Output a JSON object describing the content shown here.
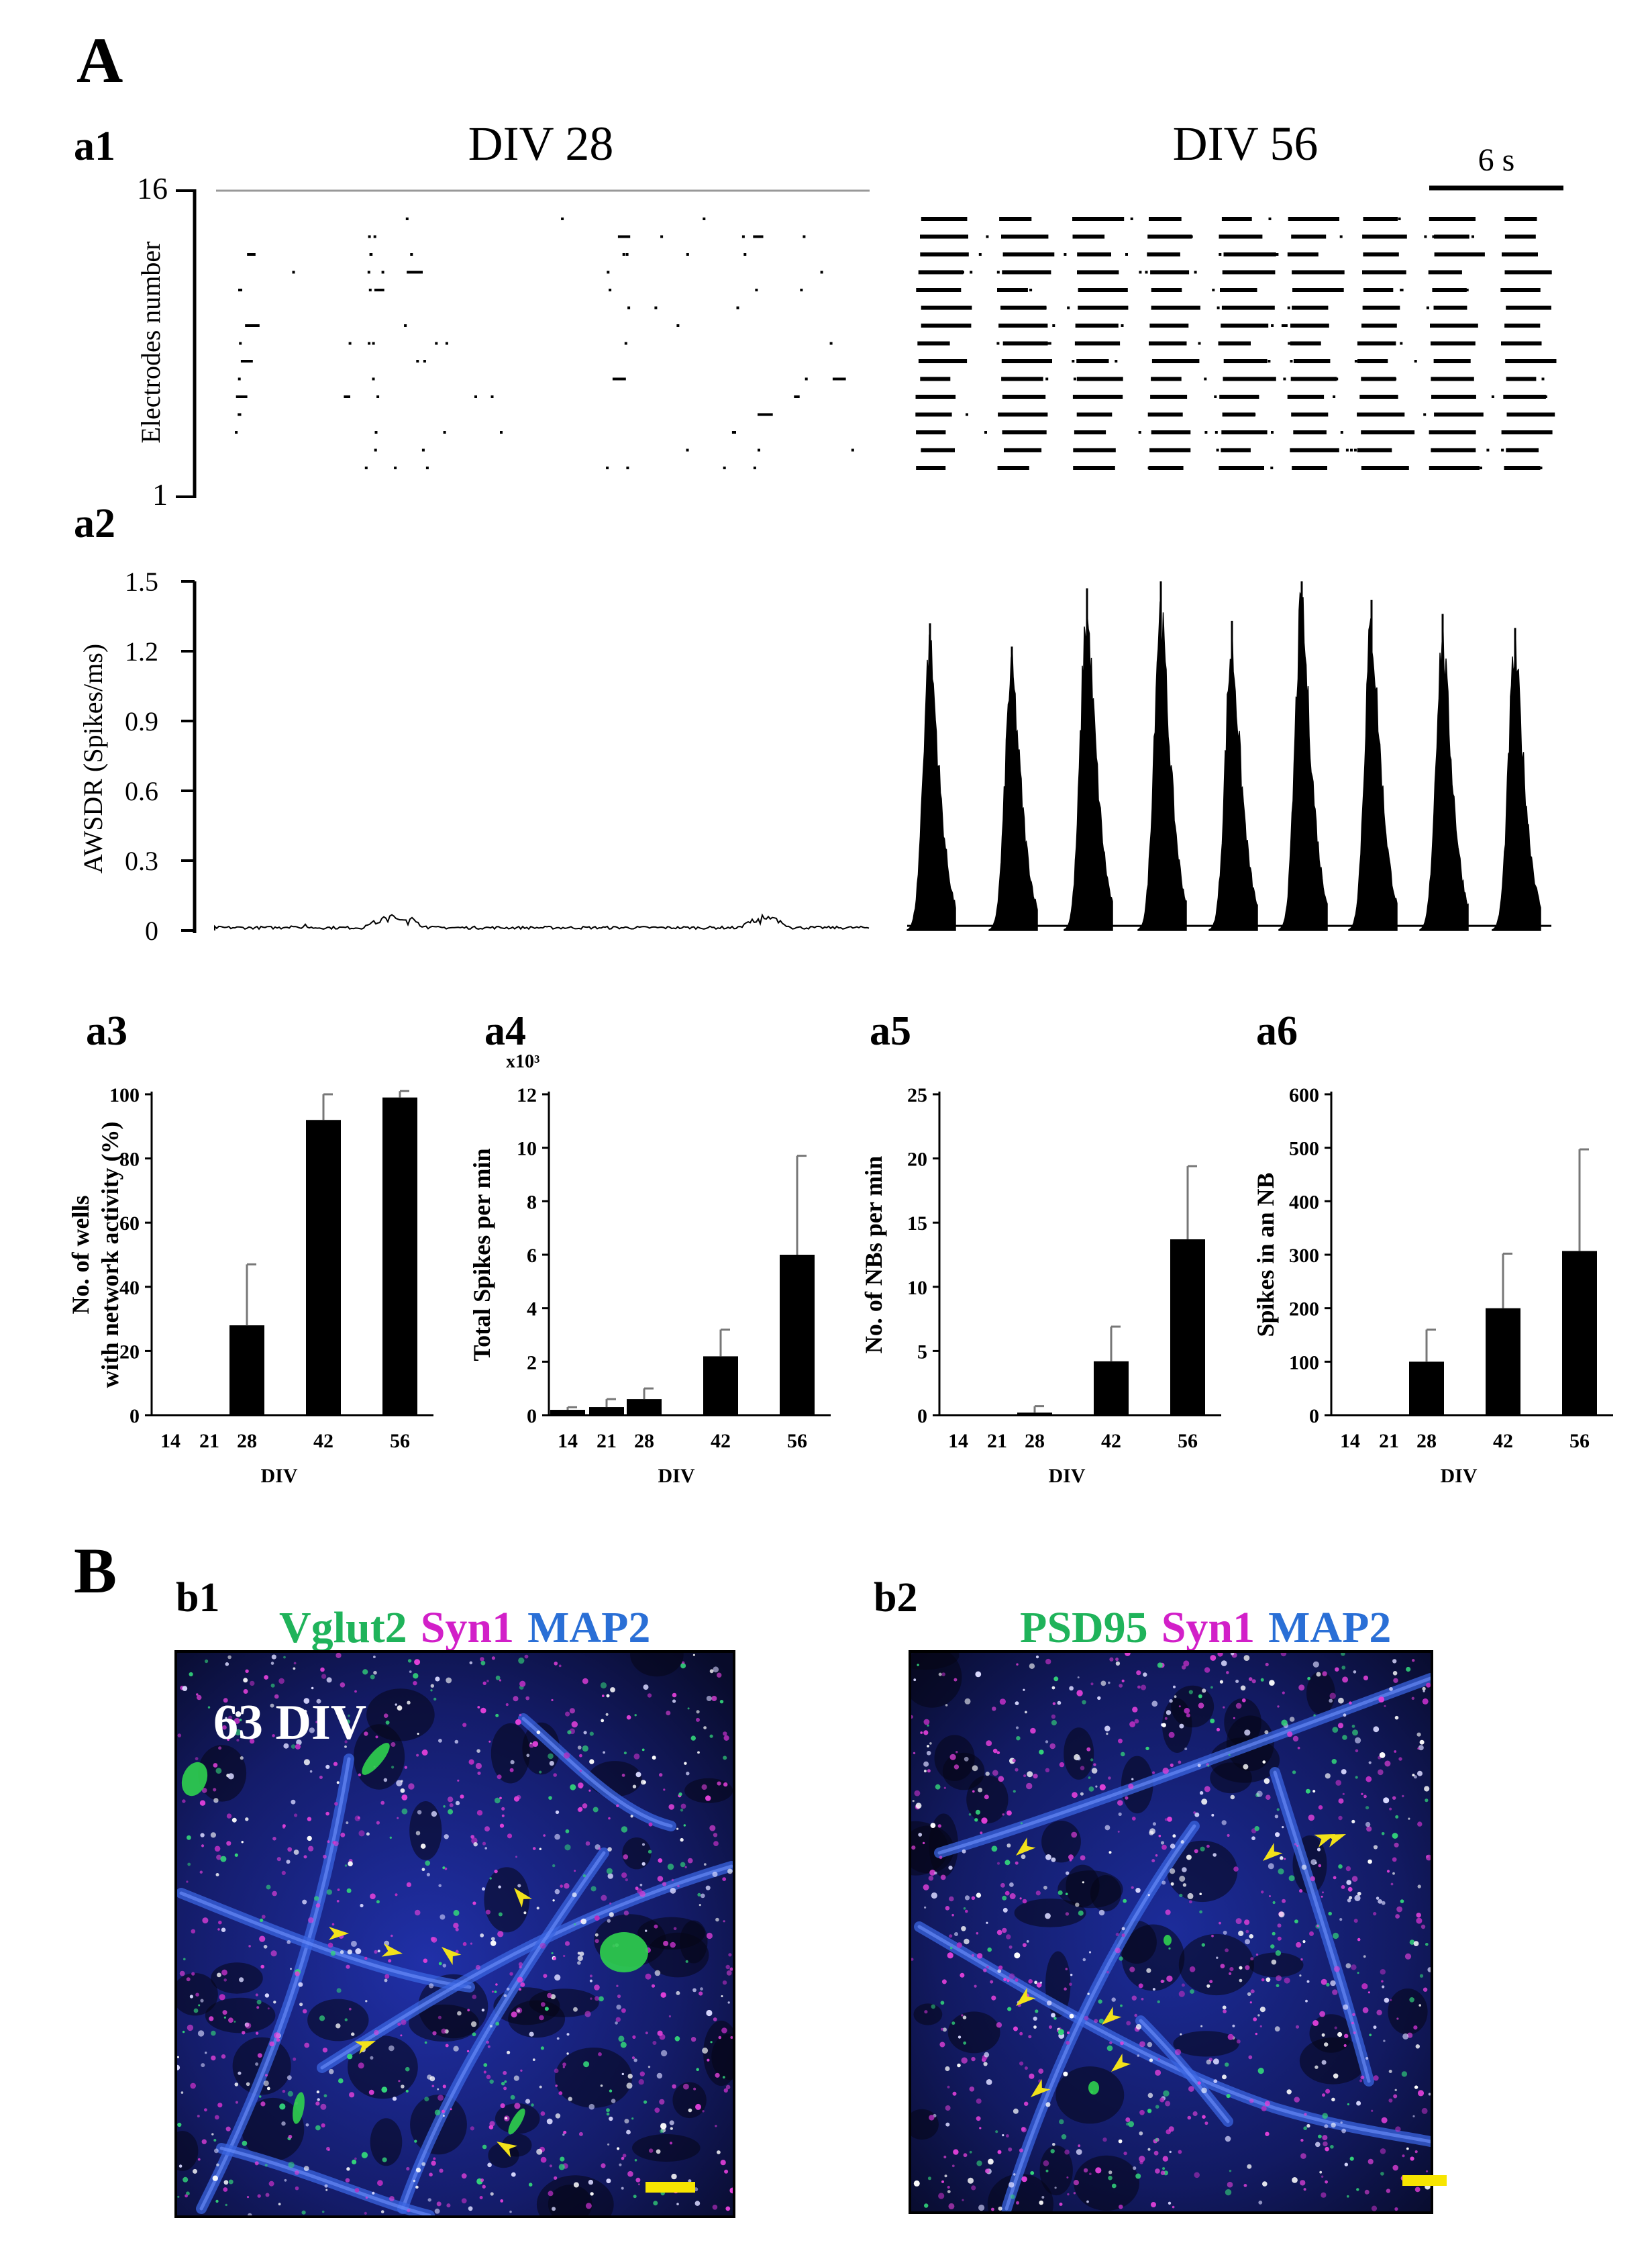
{
  "panel_letters": {
    "A": "A",
    "B": "B"
  },
  "panels": {
    "a1": "a1",
    "a2": "a2",
    "a3": "a3",
    "a4": "a4",
    "a5": "a5",
    "a6": "a6",
    "b1": "b1",
    "b2": "b2"
  },
  "raster": {
    "left_title": "DIV 28",
    "right_title": "DIV 56",
    "scale_bar_label": "6 s",
    "y_label": "Electrodes number",
    "y_tick_top": "16",
    "y_tick_bottom": "1"
  },
  "awsdr": {
    "y_label": "AWSDR (Spikes/ms)",
    "y_ticks": [
      "1.5",
      "1.2",
      "0.9",
      "0.6",
      "0.3",
      "0"
    ],
    "ylim": [
      0,
      1.5
    ],
    "burst_peaks_div56": [
      1.32,
      1.22,
      1.47,
      1.5,
      1.33,
      1.5,
      1.42,
      1.36,
      1.3
    ]
  },
  "chart_data": [
    {
      "type": "bar",
      "panel": "a3",
      "categories": [
        "14",
        "21",
        "28",
        "42",
        "56"
      ],
      "values": [
        0,
        0,
        28,
        92,
        99
      ],
      "errors": [
        0,
        0,
        19,
        8,
        2
      ],
      "xlabel": "DIV",
      "ylabel": "No. of wells with network activity (%)",
      "ylim": [
        0,
        100
      ],
      "y_ticks": [
        "0",
        "20",
        "40",
        "60",
        "80",
        "100"
      ],
      "multiplier": ""
    },
    {
      "type": "bar",
      "panel": "a4",
      "categories": [
        "14",
        "21",
        "28",
        "42",
        "56"
      ],
      "values": [
        0.2,
        0.3,
        0.6,
        2.2,
        6.0
      ],
      "errors": [
        0.1,
        0.3,
        0.4,
        1.0,
        3.7
      ],
      "xlabel": "DIV",
      "ylabel": "Total Spikes per min",
      "ylim": [
        0,
        12
      ],
      "y_ticks": [
        "0",
        "2",
        "4",
        "6",
        "8",
        "10",
        "12"
      ],
      "multiplier": "x10³"
    },
    {
      "type": "bar",
      "panel": "a5",
      "categories": [
        "14",
        "21",
        "28",
        "42",
        "56"
      ],
      "values": [
        0,
        0,
        0.2,
        4.2,
        13.7
      ],
      "errors": [
        0,
        0,
        0.5,
        2.7,
        5.7
      ],
      "xlabel": "DIV",
      "ylabel": "No. of NBs per min",
      "ylim": [
        0,
        25
      ],
      "y_ticks": [
        "0",
        "5",
        "10",
        "15",
        "20",
        "25"
      ],
      "multiplier": ""
    },
    {
      "type": "bar",
      "panel": "a6",
      "categories": [
        "14",
        "21",
        "28",
        "42",
        "56"
      ],
      "values": [
        0,
        0,
        100,
        200,
        307
      ],
      "errors": [
        0,
        0,
        60,
        102,
        190
      ],
      "xlabel": "DIV",
      "ylabel": "Spikes in an NB",
      "ylim": [
        0,
        600
      ],
      "y_ticks": [
        "0",
        "100",
        "200",
        "300",
        "400",
        "500",
        "600"
      ],
      "multiplier": ""
    }
  ],
  "micrographs": {
    "b1": {
      "stains": [
        {
          "text": "Vglut2",
          "color": "#1fb35a"
        },
        {
          "text": "Syn1",
          "color": "#d21fc8"
        },
        {
          "text": "MAP2",
          "color": "#2a6fd6"
        }
      ],
      "time_label": "63 DIV"
    },
    "b2": {
      "stains": [
        {
          "text": "PSD95",
          "color": "#1fb35a"
        },
        {
          "text": "Syn1",
          "color": "#d21fc8"
        },
        {
          "text": "MAP2",
          "color": "#2a6fd6"
        }
      ]
    }
  },
  "colors": {
    "bar": "#000000",
    "arrowhead": "#f2e21a",
    "scale_bar": "#f7e500",
    "map2": "#1f3fbf"
  }
}
